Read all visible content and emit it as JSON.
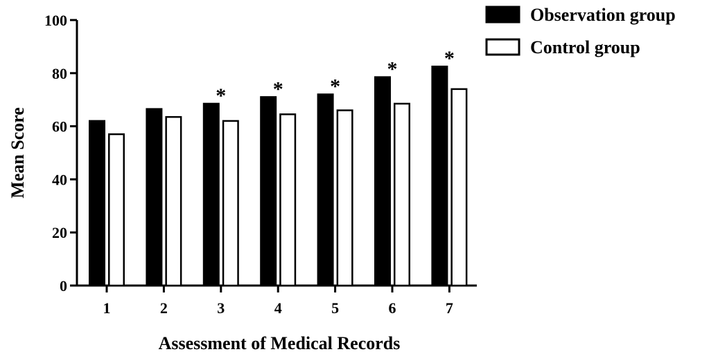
{
  "chart_data": {
    "type": "bar",
    "title": "",
    "xlabel": "Assessment of Medical Records",
    "ylabel": "Mean Score",
    "categories": [
      "1",
      "2",
      "3",
      "4",
      "5",
      "6",
      "7"
    ],
    "ylim": [
      0,
      100
    ],
    "yticks": [
      0,
      20,
      40,
      60,
      80,
      100
    ],
    "grid": false,
    "legend_position": "top-right",
    "series": [
      {
        "name": "Observation group",
        "fill": "#000000",
        "stroke": "#000000",
        "values": [
          62,
          66.5,
          68.5,
          71,
          72,
          78.5,
          82.5
        ]
      },
      {
        "name": "Control group",
        "fill": "#ffffff",
        "stroke": "#000000",
        "values": [
          57,
          63.5,
          62,
          64.5,
          66,
          68.5,
          74
        ]
      }
    ],
    "annotations": [
      {
        "category": "3",
        "text": "*"
      },
      {
        "category": "4",
        "text": "*"
      },
      {
        "category": "5",
        "text": "*"
      },
      {
        "category": "6",
        "text": "*"
      },
      {
        "category": "7",
        "text": "*"
      }
    ]
  }
}
